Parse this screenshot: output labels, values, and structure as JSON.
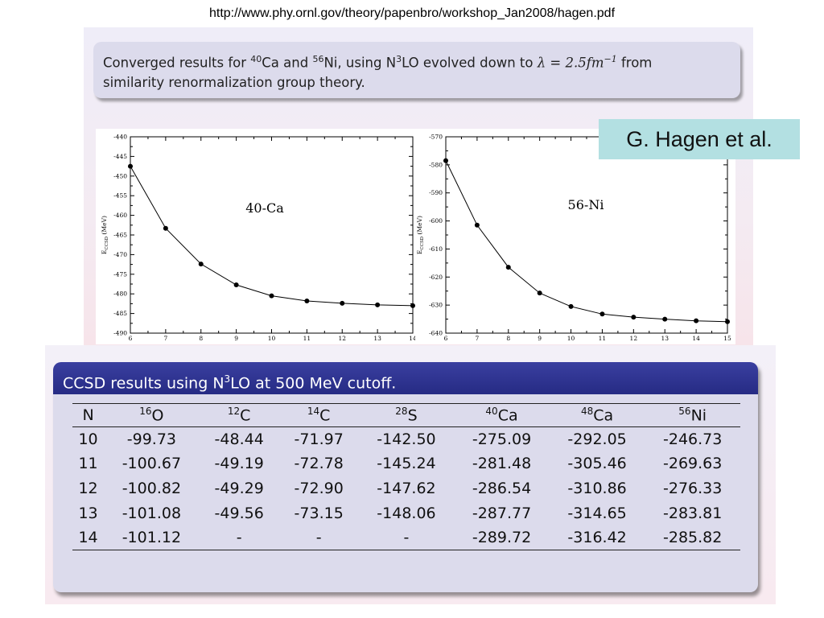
{
  "source_url": "http://www.phy.ornl.gov/theory/papenbro/workshop_Jan2008/hagen.pdf",
  "slide1": {
    "block_text": {
      "p1": "Converged results for ",
      "iso1_mass": "40",
      "iso1_el": "Ca",
      "p2": " and ",
      "iso2_mass": "56",
      "iso2_el": "Ni",
      "p3": ", using N",
      "n3_sup": "3",
      "p4": "LO evolved down to ",
      "lambda": "λ = 2.5fm",
      "lambda_exp": "−1",
      "p5": " from",
      "line2": "similarity renormalization group theory."
    },
    "author": "G. Hagen et al."
  },
  "chart_data": [
    {
      "type": "line",
      "title": "40-Ca",
      "ylabel_main": "E",
      "ylabel_sub": "CCSD",
      "ylabel_unit": " (MeV)",
      "xlim": [
        6,
        14
      ],
      "ylim": [
        -490,
        -440
      ],
      "xticks": [
        6,
        7,
        8,
        9,
        10,
        11,
        12,
        13,
        14
      ],
      "yticks": [
        -440,
        -445,
        -450,
        -455,
        -460,
        -465,
        -470,
        -475,
        -480,
        -485,
        -490
      ],
      "x": [
        6,
        7,
        8,
        9,
        10,
        11,
        12,
        13,
        14
      ],
      "y": [
        -447.5,
        -463.3,
        -472.4,
        -477.7,
        -480.5,
        -481.8,
        -482.4,
        -482.8,
        -483.0
      ],
      "grid": false
    },
    {
      "type": "line",
      "title": "56-Ni",
      "ylabel_main": "E",
      "ylabel_sub": "CCSD",
      "ylabel_unit": " (MeV)",
      "xlim": [
        6,
        15
      ],
      "ylim": [
        -640,
        -570
      ],
      "xticks": [
        6,
        7,
        8,
        9,
        10,
        11,
        12,
        13,
        14,
        15
      ],
      "yticks": [
        -570,
        -580,
        -590,
        -600,
        -610,
        -620,
        -630,
        -640
      ],
      "x": [
        6,
        7,
        8,
        9,
        10,
        11,
        12,
        13,
        14,
        15
      ],
      "y": [
        -578.5,
        -601.5,
        -616.5,
        -625.7,
        -630.5,
        -633.2,
        -634.3,
        -635.0,
        -635.6,
        -635.9
      ],
      "grid": false
    }
  ],
  "slide2": {
    "title_pre": "CCSD results using N",
    "title_sup": "3",
    "title_post": "LO at 500 MeV cutoff.",
    "headers": [
      {
        "sup": "",
        "el": "N"
      },
      {
        "sup": "16",
        "el": "O"
      },
      {
        "sup": "12",
        "el": "C"
      },
      {
        "sup": "14",
        "el": "C"
      },
      {
        "sup": "28",
        "el": "S"
      },
      {
        "sup": "40",
        "el": "Ca"
      },
      {
        "sup": "48",
        "el": "Ca"
      },
      {
        "sup": "56",
        "el": "Ni"
      }
    ],
    "rows": [
      [
        "10",
        "-99.73",
        "-48.44",
        "-71.97",
        "-142.50",
        "-275.09",
        "-292.05",
        "-246.73"
      ],
      [
        "11",
        "-100.67",
        "-49.19",
        "-72.78",
        "-145.24",
        "-281.48",
        "-305.46",
        "-269.63"
      ],
      [
        "12",
        "-100.82",
        "-49.29",
        "-72.90",
        "-147.62",
        "-286.54",
        "-310.86",
        "-276.33"
      ],
      [
        "13",
        "-101.08",
        "-49.56",
        "-73.15",
        "-148.06",
        "-287.77",
        "-314.65",
        "-283.81"
      ],
      [
        "14",
        "-101.12",
        "-",
        "-",
        "-",
        "-289.72",
        "-316.42",
        "-285.82"
      ]
    ]
  }
}
